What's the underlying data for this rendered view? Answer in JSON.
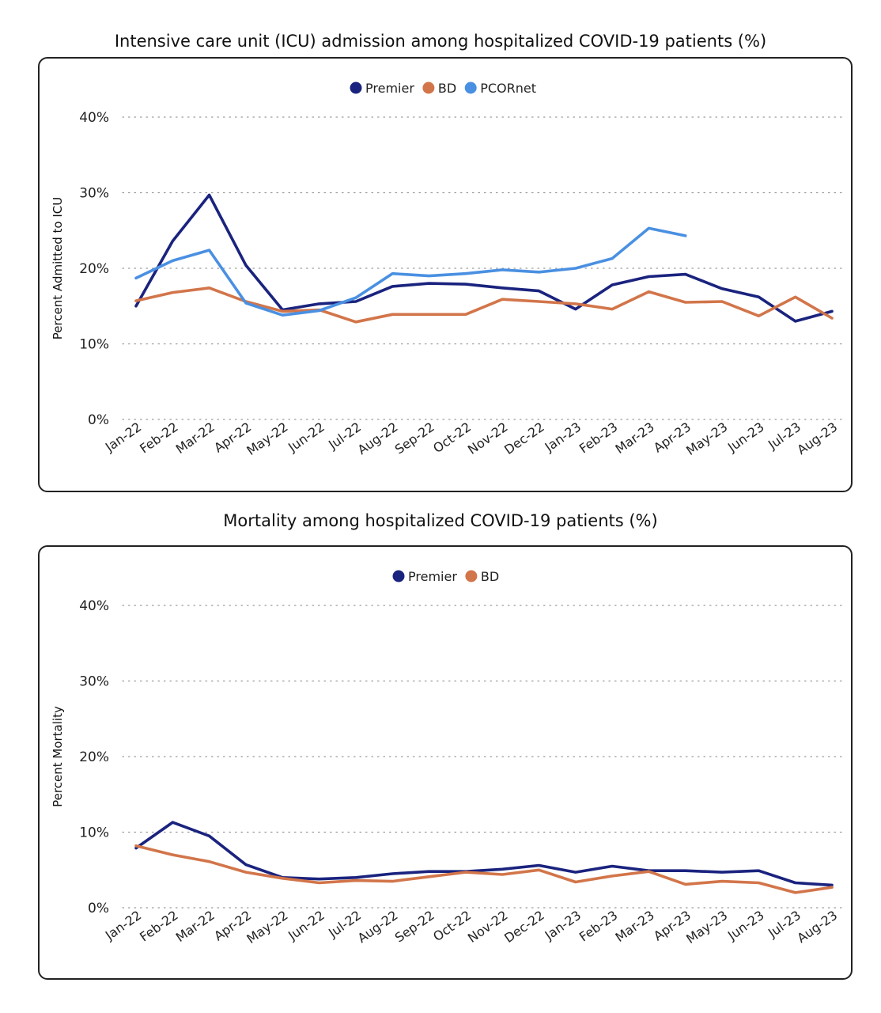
{
  "chart_data": [
    {
      "type": "line",
      "title": "Intensive care unit (ICU) admission among hospitalized COVID-19 patients (%)",
      "ylabel": "Percent Admitted to ICU",
      "xlabel": "",
      "ylim": [
        0,
        40
      ],
      "yticks": [
        "0%",
        "10%",
        "20%",
        "30%",
        "40%"
      ],
      "grid": true,
      "legend": "top-center",
      "categories": [
        "Jan-22",
        "Feb-22",
        "Mar-22",
        "Apr-22",
        "May-22",
        "Jun-22",
        "Jul-22",
        "Aug-22",
        "Sep-22",
        "Oct-22",
        "Nov-22",
        "Dec-22",
        "Jan-23",
        "Feb-23",
        "Mar-23",
        "Apr-23",
        "May-23",
        "Jun-23",
        "Jul-23",
        "Aug-23"
      ],
      "series": [
        {
          "name": "Premier",
          "color": "#1a237e",
          "values": [
            15.0,
            23.6,
            29.7,
            20.4,
            14.5,
            15.3,
            15.6,
            17.6,
            18.0,
            17.9,
            17.4,
            17.0,
            14.6,
            17.8,
            18.9,
            19.2,
            17.3,
            16.2,
            13.0,
            14.3
          ]
        },
        {
          "name": "BD",
          "color": "#d2754a",
          "values": [
            15.7,
            16.8,
            17.4,
            15.6,
            14.3,
            14.5,
            12.9,
            13.9,
            13.9,
            13.9,
            15.9,
            15.6,
            15.3,
            14.6,
            16.9,
            15.5,
            15.6,
            13.7,
            16.2,
            13.4
          ]
        },
        {
          "name": "PCORnet",
          "color": "#4a90e2",
          "values": [
            18.7,
            21.0,
            22.4,
            15.4,
            13.8,
            14.4,
            16.1,
            19.3,
            19.0,
            19.3,
            19.8,
            19.5,
            20.0,
            21.3,
            25.3,
            24.3,
            null,
            null,
            null,
            null
          ]
        }
      ]
    },
    {
      "type": "line",
      "title": "Mortality among hospitalized COVID-19 patients (%)",
      "ylabel": "Percent Mortality",
      "xlabel": "",
      "ylim": [
        0,
        40
      ],
      "yticks": [
        "0%",
        "10%",
        "20%",
        "30%",
        "40%"
      ],
      "grid": true,
      "legend": "top-center",
      "categories": [
        "Jan-22",
        "Feb-22",
        "Mar-22",
        "Apr-22",
        "May-22",
        "Jun-22",
        "Jul-22",
        "Aug-22",
        "Sep-22",
        "Oct-22",
        "Nov-22",
        "Dec-22",
        "Jan-23",
        "Feb-23",
        "Mar-23",
        "Apr-23",
        "May-23",
        "Jun-23",
        "Jul-23",
        "Aug-23"
      ],
      "series": [
        {
          "name": "Premier",
          "color": "#1a237e",
          "values": [
            7.9,
            11.3,
            9.5,
            5.7,
            4.0,
            3.8,
            4.0,
            4.5,
            4.8,
            4.8,
            5.1,
            5.6,
            4.7,
            5.5,
            4.9,
            4.9,
            4.7,
            4.9,
            3.3,
            3.0
          ]
        },
        {
          "name": "BD",
          "color": "#d2754a",
          "values": [
            8.2,
            7.0,
            6.1,
            4.7,
            3.9,
            3.3,
            3.6,
            3.5,
            4.1,
            4.7,
            4.4,
            5.0,
            3.4,
            4.2,
            4.8,
            3.1,
            3.5,
            3.3,
            2.0,
            2.7
          ]
        }
      ]
    }
  ]
}
